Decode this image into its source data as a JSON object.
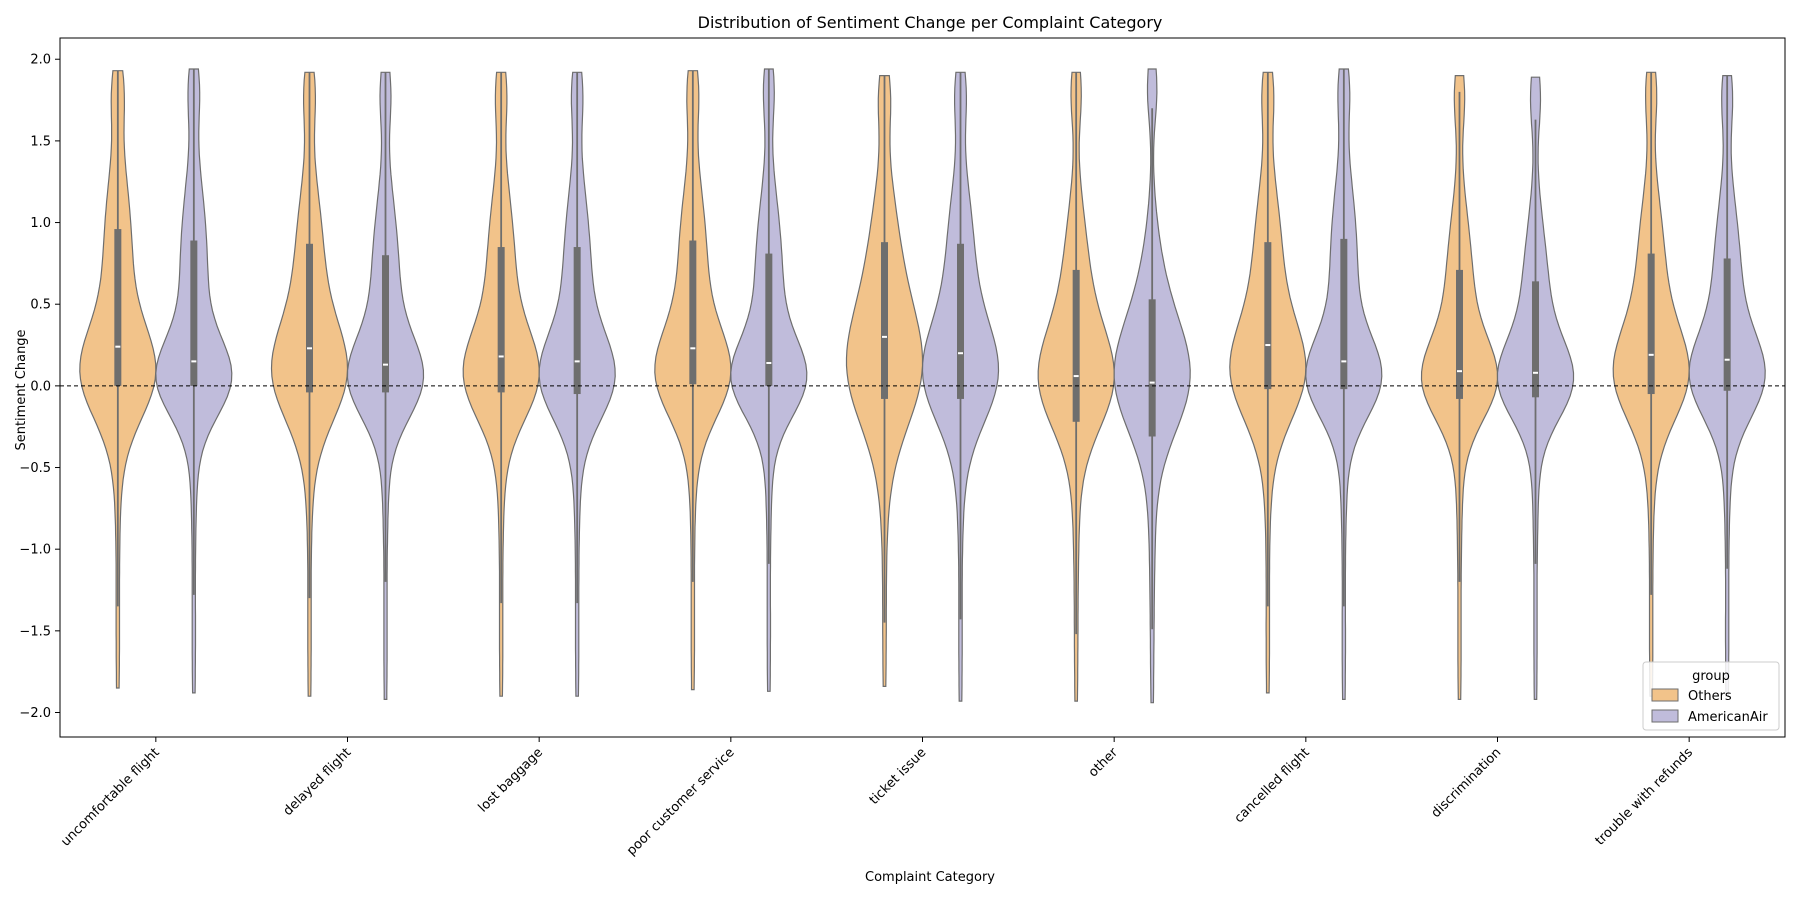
{
  "chart_data": {
    "type": "violin",
    "title": "Distribution of Sentiment Change per Complaint Category",
    "xlabel": "Complaint Category",
    "ylabel": "Sentiment Change",
    "ylim": [
      -2.15,
      2.13
    ],
    "yticks": [
      -2.0,
      -1.5,
      -1.0,
      -0.5,
      0.0,
      0.5,
      1.0,
      1.5,
      2.0
    ],
    "ytick_labels": [
      "−2.0",
      "−1.5",
      "−1.0",
      "−0.5",
      "0.0",
      "0.5",
      "1.0",
      "1.5",
      "2.0"
    ],
    "reference_line": 0.0,
    "grid": false,
    "legend": {
      "title": "group",
      "placement": "lower-right",
      "entries": [
        {
          "name": "Others",
          "color": "#f2c38a"
        },
        {
          "name": "AmericanAir",
          "color": "#c0bcdb"
        }
      ]
    },
    "categories": [
      "uncomfortable flight",
      "delayed flight",
      "lost baggage",
      "poor customer service",
      "ticket issue",
      "other",
      "cancelled flight",
      "discrimination",
      "trouble with refunds"
    ],
    "series": [
      {
        "name": "Others",
        "color": "#f2c38a",
        "stats": [
          {
            "min": -1.85,
            "max": 1.93,
            "q1": 0.0,
            "median": 0.24,
            "q3": 0.96,
            "whisker_low": -1.35,
            "whisker_high": 1.93
          },
          {
            "min": -1.9,
            "max": 1.92,
            "q1": -0.04,
            "median": 0.23,
            "q3": 0.87,
            "whisker_low": -1.3,
            "whisker_high": 1.92
          },
          {
            "min": -1.9,
            "max": 1.92,
            "q1": -0.04,
            "median": 0.18,
            "q3": 0.85,
            "whisker_low": -1.33,
            "whisker_high": 1.92
          },
          {
            "min": -1.86,
            "max": 1.93,
            "q1": 0.01,
            "median": 0.23,
            "q3": 0.89,
            "whisker_low": -1.2,
            "whisker_high": 1.93
          },
          {
            "min": -1.84,
            "max": 1.9,
            "q1": -0.08,
            "median": 0.3,
            "q3": 0.88,
            "whisker_low": -1.45,
            "whisker_high": 1.9
          },
          {
            "min": -1.93,
            "max": 1.92,
            "q1": -0.22,
            "median": 0.06,
            "q3": 0.71,
            "whisker_low": -1.52,
            "whisker_high": 1.92
          },
          {
            "min": -1.88,
            "max": 1.92,
            "q1": -0.02,
            "median": 0.25,
            "q3": 0.88,
            "whisker_low": -1.35,
            "whisker_high": 1.92
          },
          {
            "min": -1.92,
            "max": 1.9,
            "q1": -0.08,
            "median": 0.09,
            "q3": 0.71,
            "whisker_low": -1.2,
            "whisker_high": 1.8
          },
          {
            "min": -1.9,
            "max": 1.92,
            "q1": -0.05,
            "median": 0.19,
            "q3": 0.81,
            "whisker_low": -1.28,
            "whisker_high": 1.92
          }
        ]
      },
      {
        "name": "AmericanAir",
        "color": "#c0bcdb",
        "stats": [
          {
            "min": -1.88,
            "max": 1.94,
            "q1": 0.0,
            "median": 0.15,
            "q3": 0.89,
            "whisker_low": -1.28,
            "whisker_high": 1.94
          },
          {
            "min": -1.92,
            "max": 1.92,
            "q1": -0.04,
            "median": 0.13,
            "q3": 0.8,
            "whisker_low": -1.2,
            "whisker_high": 1.92
          },
          {
            "min": -1.9,
            "max": 1.92,
            "q1": -0.05,
            "median": 0.15,
            "q3": 0.85,
            "whisker_low": -1.33,
            "whisker_high": 1.92
          },
          {
            "min": -1.87,
            "max": 1.94,
            "q1": 0.0,
            "median": 0.14,
            "q3": 0.81,
            "whisker_low": -1.09,
            "whisker_high": 1.94
          },
          {
            "min": -1.93,
            "max": 1.92,
            "q1": -0.08,
            "median": 0.2,
            "q3": 0.87,
            "whisker_low": -1.43,
            "whisker_high": 1.92
          },
          {
            "min": -1.94,
            "max": 1.94,
            "q1": -0.31,
            "median": 0.02,
            "q3": 0.53,
            "whisker_low": -1.49,
            "whisker_high": 1.7
          },
          {
            "min": -1.92,
            "max": 1.94,
            "q1": -0.02,
            "median": 0.15,
            "q3": 0.9,
            "whisker_low": -1.35,
            "whisker_high": 1.94
          },
          {
            "min": -1.92,
            "max": 1.89,
            "q1": -0.07,
            "median": 0.08,
            "q3": 0.64,
            "whisker_low": -1.09,
            "whisker_high": 1.63
          },
          {
            "min": -1.9,
            "max": 1.9,
            "q1": -0.03,
            "median": 0.16,
            "q3": 0.78,
            "whisker_low": -1.12,
            "whisker_high": 1.9
          }
        ]
      }
    ]
  }
}
